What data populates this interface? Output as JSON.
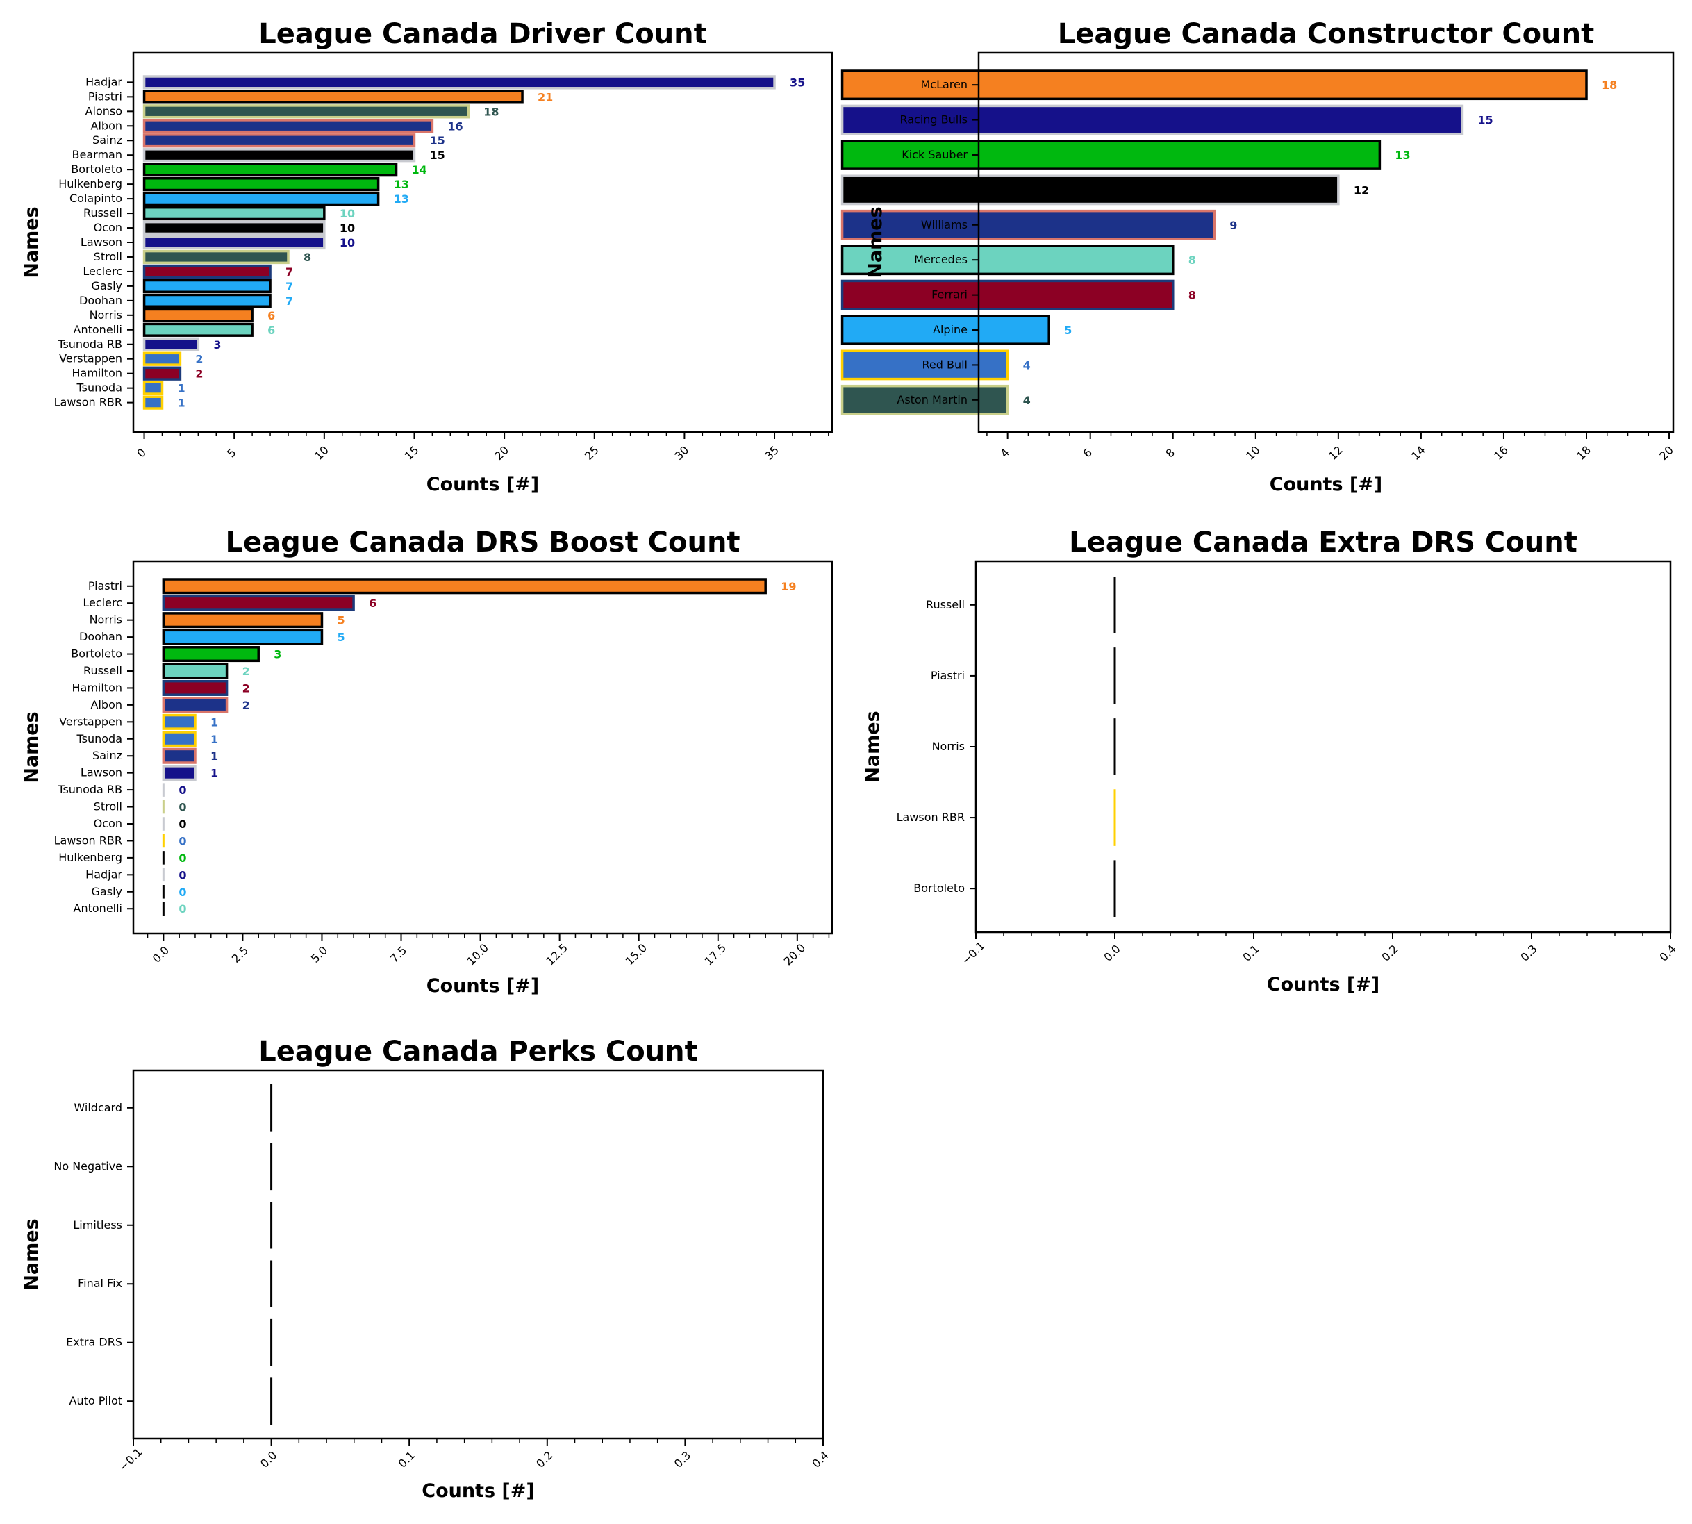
{
  "colors": {
    "mclaren": "#f58020",
    "racing_bulls": "#15118a",
    "aston_martin": "#2f5550",
    "williams": "#1c3289",
    "haas": "#000000",
    "kick_sauber": "#00b80f",
    "alpine": "#21aaf5",
    "mercedes": "#6cd3bf",
    "ferrari": "#8c0024",
    "red_bull": "#3671c6",
    "edge_light": "#c8cad0",
    "edge_black": "#000000",
    "edge_salmon": "#d9756a",
    "edge_olive": "#c9cf8a",
    "edge_navy": "#1c3a7a",
    "edge_yellow": "#ffd000"
  },
  "chart_data": [
    {
      "id": "driver",
      "type": "bar",
      "orientation": "horizontal",
      "title": "League Canada Driver Count",
      "xlabel": "Counts [#]",
      "ylabel": "Names",
      "xlim": [
        -0.6,
        38.2
      ],
      "xticks": [
        0,
        5,
        10,
        15,
        20,
        25,
        30,
        35
      ],
      "xtick_labels": [
        "0",
        "5",
        "10",
        "15",
        "20",
        "25",
        "30",
        "35"
      ],
      "minor_step": 1,
      "grid": false,
      "categories": [
        "Hadjar",
        "Piastri",
        "Alonso",
        "Albon",
        "Sainz",
        "Bearman",
        "Bortoleto",
        "Hulkenberg",
        "Colapinto",
        "Russell",
        "Ocon",
        "Lawson",
        "Stroll",
        "Leclerc",
        "Gasly",
        "Doohan",
        "Norris",
        "Antonelli",
        "Tsunoda RB",
        "Verstappen",
        "Hamilton",
        "Tsunoda",
        "Lawson RBR"
      ],
      "values": [
        35,
        21,
        18,
        16,
        15,
        15,
        14,
        13,
        13,
        10,
        10,
        10,
        8,
        7,
        7,
        7,
        6,
        6,
        3,
        2,
        2,
        1,
        1
      ],
      "fill": [
        "racing_bulls",
        "mclaren",
        "aston_martin",
        "williams",
        "williams",
        "haas",
        "kick_sauber",
        "kick_sauber",
        "alpine",
        "mercedes",
        "haas",
        "racing_bulls",
        "aston_martin",
        "ferrari",
        "alpine",
        "alpine",
        "mclaren",
        "mercedes",
        "racing_bulls",
        "red_bull",
        "ferrari",
        "red_bull",
        "red_bull"
      ],
      "edge": [
        "edge_light",
        "edge_black",
        "edge_olive",
        "edge_salmon",
        "edge_salmon",
        "edge_light",
        "edge_black",
        "edge_black",
        "edge_black",
        "edge_black",
        "edge_light",
        "edge_light",
        "edge_olive",
        "edge_navy",
        "edge_black",
        "edge_black",
        "edge_black",
        "edge_black",
        "edge_light",
        "edge_yellow",
        "edge_navy",
        "edge_yellow",
        "edge_yellow"
      ],
      "data_labels": true
    },
    {
      "id": "constructor",
      "type": "bar",
      "orientation": "horizontal",
      "title": "League Canada Constructor Count",
      "xlabel": "Counts [#]",
      "ylabel": "Names",
      "xlim": [
        3.3,
        20.1
      ],
      "xticks": [
        4,
        6,
        8,
        10,
        12,
        14,
        16,
        18,
        20
      ],
      "xtick_labels": [
        "4",
        "6",
        "8",
        "10",
        "12",
        "14",
        "16",
        "18",
        "20"
      ],
      "minor_step": 0.5,
      "grid": false,
      "categories": [
        "McLaren",
        "Racing Bulls",
        "Kick Sauber",
        "Haas",
        "Williams",
        "Mercedes",
        "Ferrari",
        "Alpine",
        "Red Bull",
        "Aston Martin"
      ],
      "values": [
        18,
        15,
        13,
        12,
        9,
        8,
        8,
        5,
        4,
        4
      ],
      "fill": [
        "mclaren",
        "racing_bulls",
        "kick_sauber",
        "haas",
        "williams",
        "mercedes",
        "ferrari",
        "alpine",
        "red_bull",
        "aston_martin"
      ],
      "edge": [
        "edge_black",
        "edge_light",
        "edge_black",
        "edge_light",
        "edge_salmon",
        "edge_black",
        "edge_navy",
        "edge_black",
        "edge_yellow",
        "edge_olive"
      ],
      "data_labels": true
    },
    {
      "id": "drs_boost",
      "type": "bar",
      "orientation": "horizontal",
      "title": "League Canada DRS Boost Count",
      "xlabel": "Counts [#]",
      "ylabel": "Names",
      "xlim": [
        -0.95,
        21.1
      ],
      "xticks": [
        0,
        2.5,
        5,
        7.5,
        10,
        12.5,
        15,
        17.5,
        20
      ],
      "xtick_labels": [
        "0.0",
        "2.5",
        "5.0",
        "7.5",
        "10.0",
        "12.5",
        "15.0",
        "17.5",
        "20.0"
      ],
      "minor_step": 0.5,
      "grid": false,
      "categories": [
        "Piastri",
        "Leclerc",
        "Norris",
        "Doohan",
        "Bortoleto",
        "Russell",
        "Hamilton",
        "Albon",
        "Verstappen",
        "Tsunoda",
        "Sainz",
        "Lawson",
        "Tsunoda RB",
        "Stroll",
        "Ocon",
        "Lawson RBR",
        "Hulkenberg",
        "Hadjar",
        "Gasly",
        "Antonelli"
      ],
      "values": [
        19,
        6,
        5,
        5,
        3,
        2,
        2,
        2,
        1,
        1,
        1,
        1,
        0,
        0,
        0,
        0,
        0,
        0,
        0,
        0
      ],
      "fill": [
        "mclaren",
        "ferrari",
        "mclaren",
        "alpine",
        "kick_sauber",
        "mercedes",
        "ferrari",
        "williams",
        "red_bull",
        "red_bull",
        "williams",
        "racing_bulls",
        "racing_bulls",
        "aston_martin",
        "haas",
        "red_bull",
        "kick_sauber",
        "racing_bulls",
        "alpine",
        "mercedes"
      ],
      "edge": [
        "edge_black",
        "edge_navy",
        "edge_black",
        "edge_black",
        "edge_black",
        "edge_black",
        "edge_navy",
        "edge_salmon",
        "edge_yellow",
        "edge_yellow",
        "edge_salmon",
        "edge_light",
        "edge_light",
        "edge_olive",
        "edge_light",
        "edge_yellow",
        "edge_black",
        "edge_light",
        "edge_black",
        "edge_black"
      ],
      "data_labels": true
    },
    {
      "id": "extra_drs",
      "type": "bar",
      "orientation": "horizontal",
      "title": "League Canada Extra DRS Count",
      "xlabel": "Counts [#]",
      "ylabel": "Names",
      "xlim": [
        -0.1,
        0.4
      ],
      "xticks": [
        -0.1,
        0,
        0.1,
        0.2,
        0.3,
        0.4
      ],
      "xtick_labels": [
        "−0.1",
        "0.0",
        "0.1",
        "0.2",
        "0.3",
        "0.4"
      ],
      "minor_step": 0.02,
      "grid": false,
      "categories": [
        "Russell",
        "Piastri",
        "Norris",
        "Lawson RBR",
        "Bortoleto"
      ],
      "values": [
        0,
        0,
        0,
        0,
        0
      ],
      "fill": [
        "mercedes",
        "mclaren",
        "mclaren",
        "red_bull",
        "kick_sauber"
      ],
      "edge": [
        "edge_black",
        "edge_black",
        "edge_black",
        "edge_yellow",
        "edge_black"
      ],
      "data_labels": false
    },
    {
      "id": "perks",
      "type": "bar",
      "orientation": "horizontal",
      "title": "League Canada Perks Count",
      "xlabel": "Counts [#]",
      "ylabel": "Names",
      "xlim": [
        -0.1,
        0.4
      ],
      "xticks": [
        -0.1,
        0,
        0.1,
        0.2,
        0.3,
        0.4
      ],
      "xtick_labels": [
        "−0.1",
        "0.0",
        "0.1",
        "0.2",
        "0.3",
        "0.4"
      ],
      "minor_step": 0.02,
      "grid": false,
      "categories": [
        "Wildcard",
        "No Negative",
        "Limitless",
        "Final Fix",
        "Extra DRS",
        "Auto Pilot"
      ],
      "values": [
        0,
        0,
        0,
        0,
        0,
        0
      ],
      "fill": [
        "haas",
        "haas",
        "haas",
        "haas",
        "haas",
        "haas"
      ],
      "edge": [
        "edge_black",
        "edge_black",
        "edge_black",
        "edge_black",
        "edge_black",
        "edge_black"
      ],
      "data_labels": false
    }
  ]
}
